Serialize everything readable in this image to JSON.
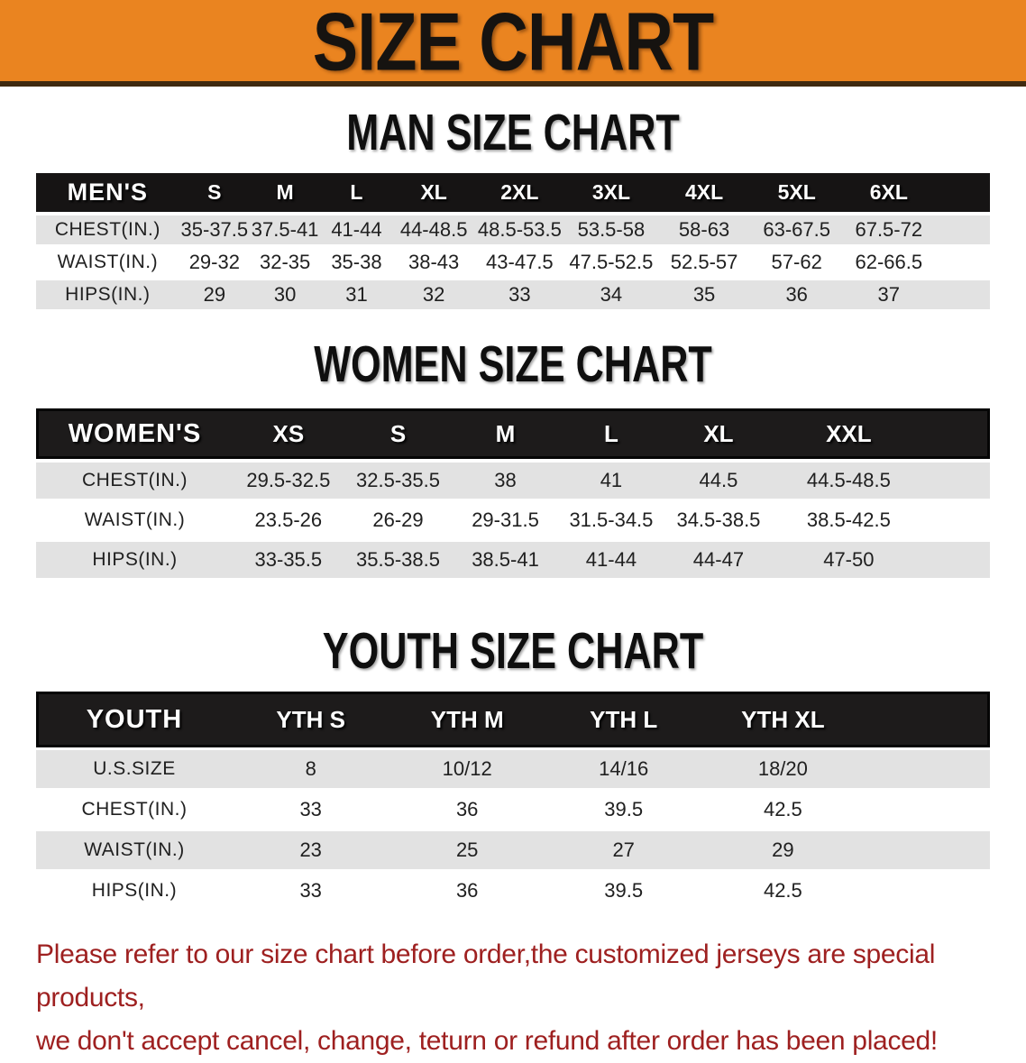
{
  "banner": {
    "title": "SIZE CHART"
  },
  "colors": {
    "banner_bg": "#EA8420",
    "banner_border": "#3F2A10",
    "table_header_bg": "#1A1818",
    "row_stripe_gray": "#E2E2E2",
    "disclaimer_red": "#9E2020"
  },
  "sections": [
    {
      "id": "men",
      "heading": "MAN SIZE CHART",
      "header": [
        "MEN'S",
        "S",
        "M",
        "L",
        "XL",
        "2XL",
        "3XL",
        "4XL",
        "5XL",
        "6XL"
      ],
      "rows": [
        [
          "CHEST(IN.)",
          "35-37.5",
          "37.5-41",
          "41-44",
          "44-48.5",
          "48.5-53.5",
          "53.5-58",
          "58-63",
          "63-67.5",
          "67.5-72"
        ],
        [
          "WAIST(IN.)",
          "29-32",
          "32-35",
          "35-38",
          "38-43",
          "43-47.5",
          "47.5-52.5",
          "52.5-57",
          "57-62",
          "62-66.5"
        ],
        [
          "HIPS(IN.)",
          "29",
          "30",
          "31",
          "32",
          "33",
          "34",
          "35",
          "36",
          "37"
        ]
      ]
    },
    {
      "id": "women",
      "heading": "WOMEN SIZE CHART",
      "header": [
        "WOMEN'S",
        "XS",
        "S",
        "M",
        "L",
        "XL",
        "XXL"
      ],
      "rows": [
        [
          "CHEST(IN.)",
          "29.5-32.5",
          "32.5-35.5",
          "38",
          "41",
          "44.5",
          "44.5-48.5"
        ],
        [
          "WAIST(IN.)",
          "23.5-26",
          "26-29",
          "29-31.5",
          "31.5-34.5",
          "34.5-38.5",
          "38.5-42.5"
        ],
        [
          "HIPS(IN.)",
          "33-35.5",
          "35.5-38.5",
          "38.5-41",
          "41-44",
          "44-47",
          "47-50"
        ]
      ]
    },
    {
      "id": "youth",
      "heading": "YOUTH SIZE CHART",
      "header": [
        "YOUTH",
        "YTH S",
        "YTH M",
        "YTH L",
        "YTH XL"
      ],
      "rows": [
        [
          "U.S.SIZE",
          "8",
          "10/12",
          "14/16",
          "18/20"
        ],
        [
          "CHEST(IN.)",
          "33",
          "36",
          "39.5",
          "42.5"
        ],
        [
          "WAIST(IN.)",
          "23",
          "25",
          "27",
          "29"
        ],
        [
          "HIPS(IN.)",
          "33",
          "36",
          "39.5",
          "42.5"
        ]
      ]
    }
  ],
  "disclaimer": {
    "line1": "Please refer to our size chart before order,the customized jerseys are special products,",
    "line2": "we don't accept cancel, change, teturn or refund after order has been placed!"
  }
}
